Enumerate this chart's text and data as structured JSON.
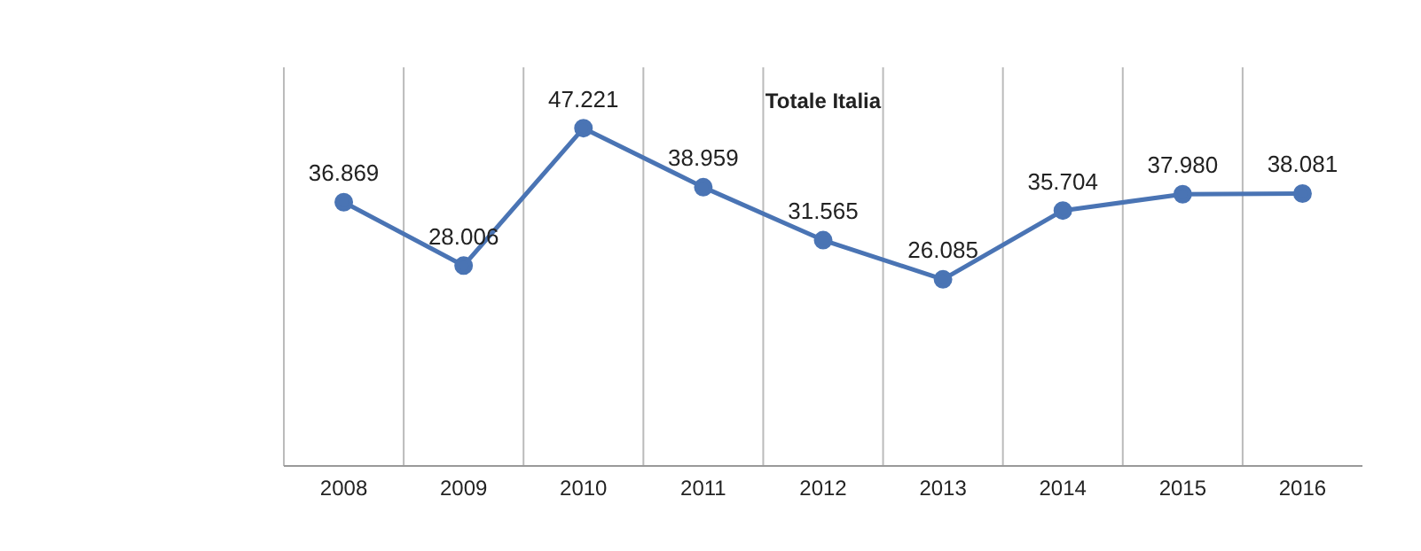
{
  "chart_data": {
    "type": "line",
    "title": "Totale Italia",
    "categories": [
      "2008",
      "2009",
      "2010",
      "2011",
      "2012",
      "2013",
      "2014",
      "2015",
      "2016"
    ],
    "series": [
      {
        "color": "#4a74b4",
        "values": [
          36869,
          28006,
          47221,
          38959,
          31565,
          26085,
          35704,
          37980,
          38081
        ],
        "value_labels": [
          "36.869",
          "28.006",
          "47.221",
          "38.959",
          "31.565",
          "26.085",
          "35.704",
          "37.980",
          "38.081"
        ]
      }
    ],
    "grid": "x",
    "marker": "circle",
    "line_style": "solid",
    "tick_labels": "x"
  }
}
